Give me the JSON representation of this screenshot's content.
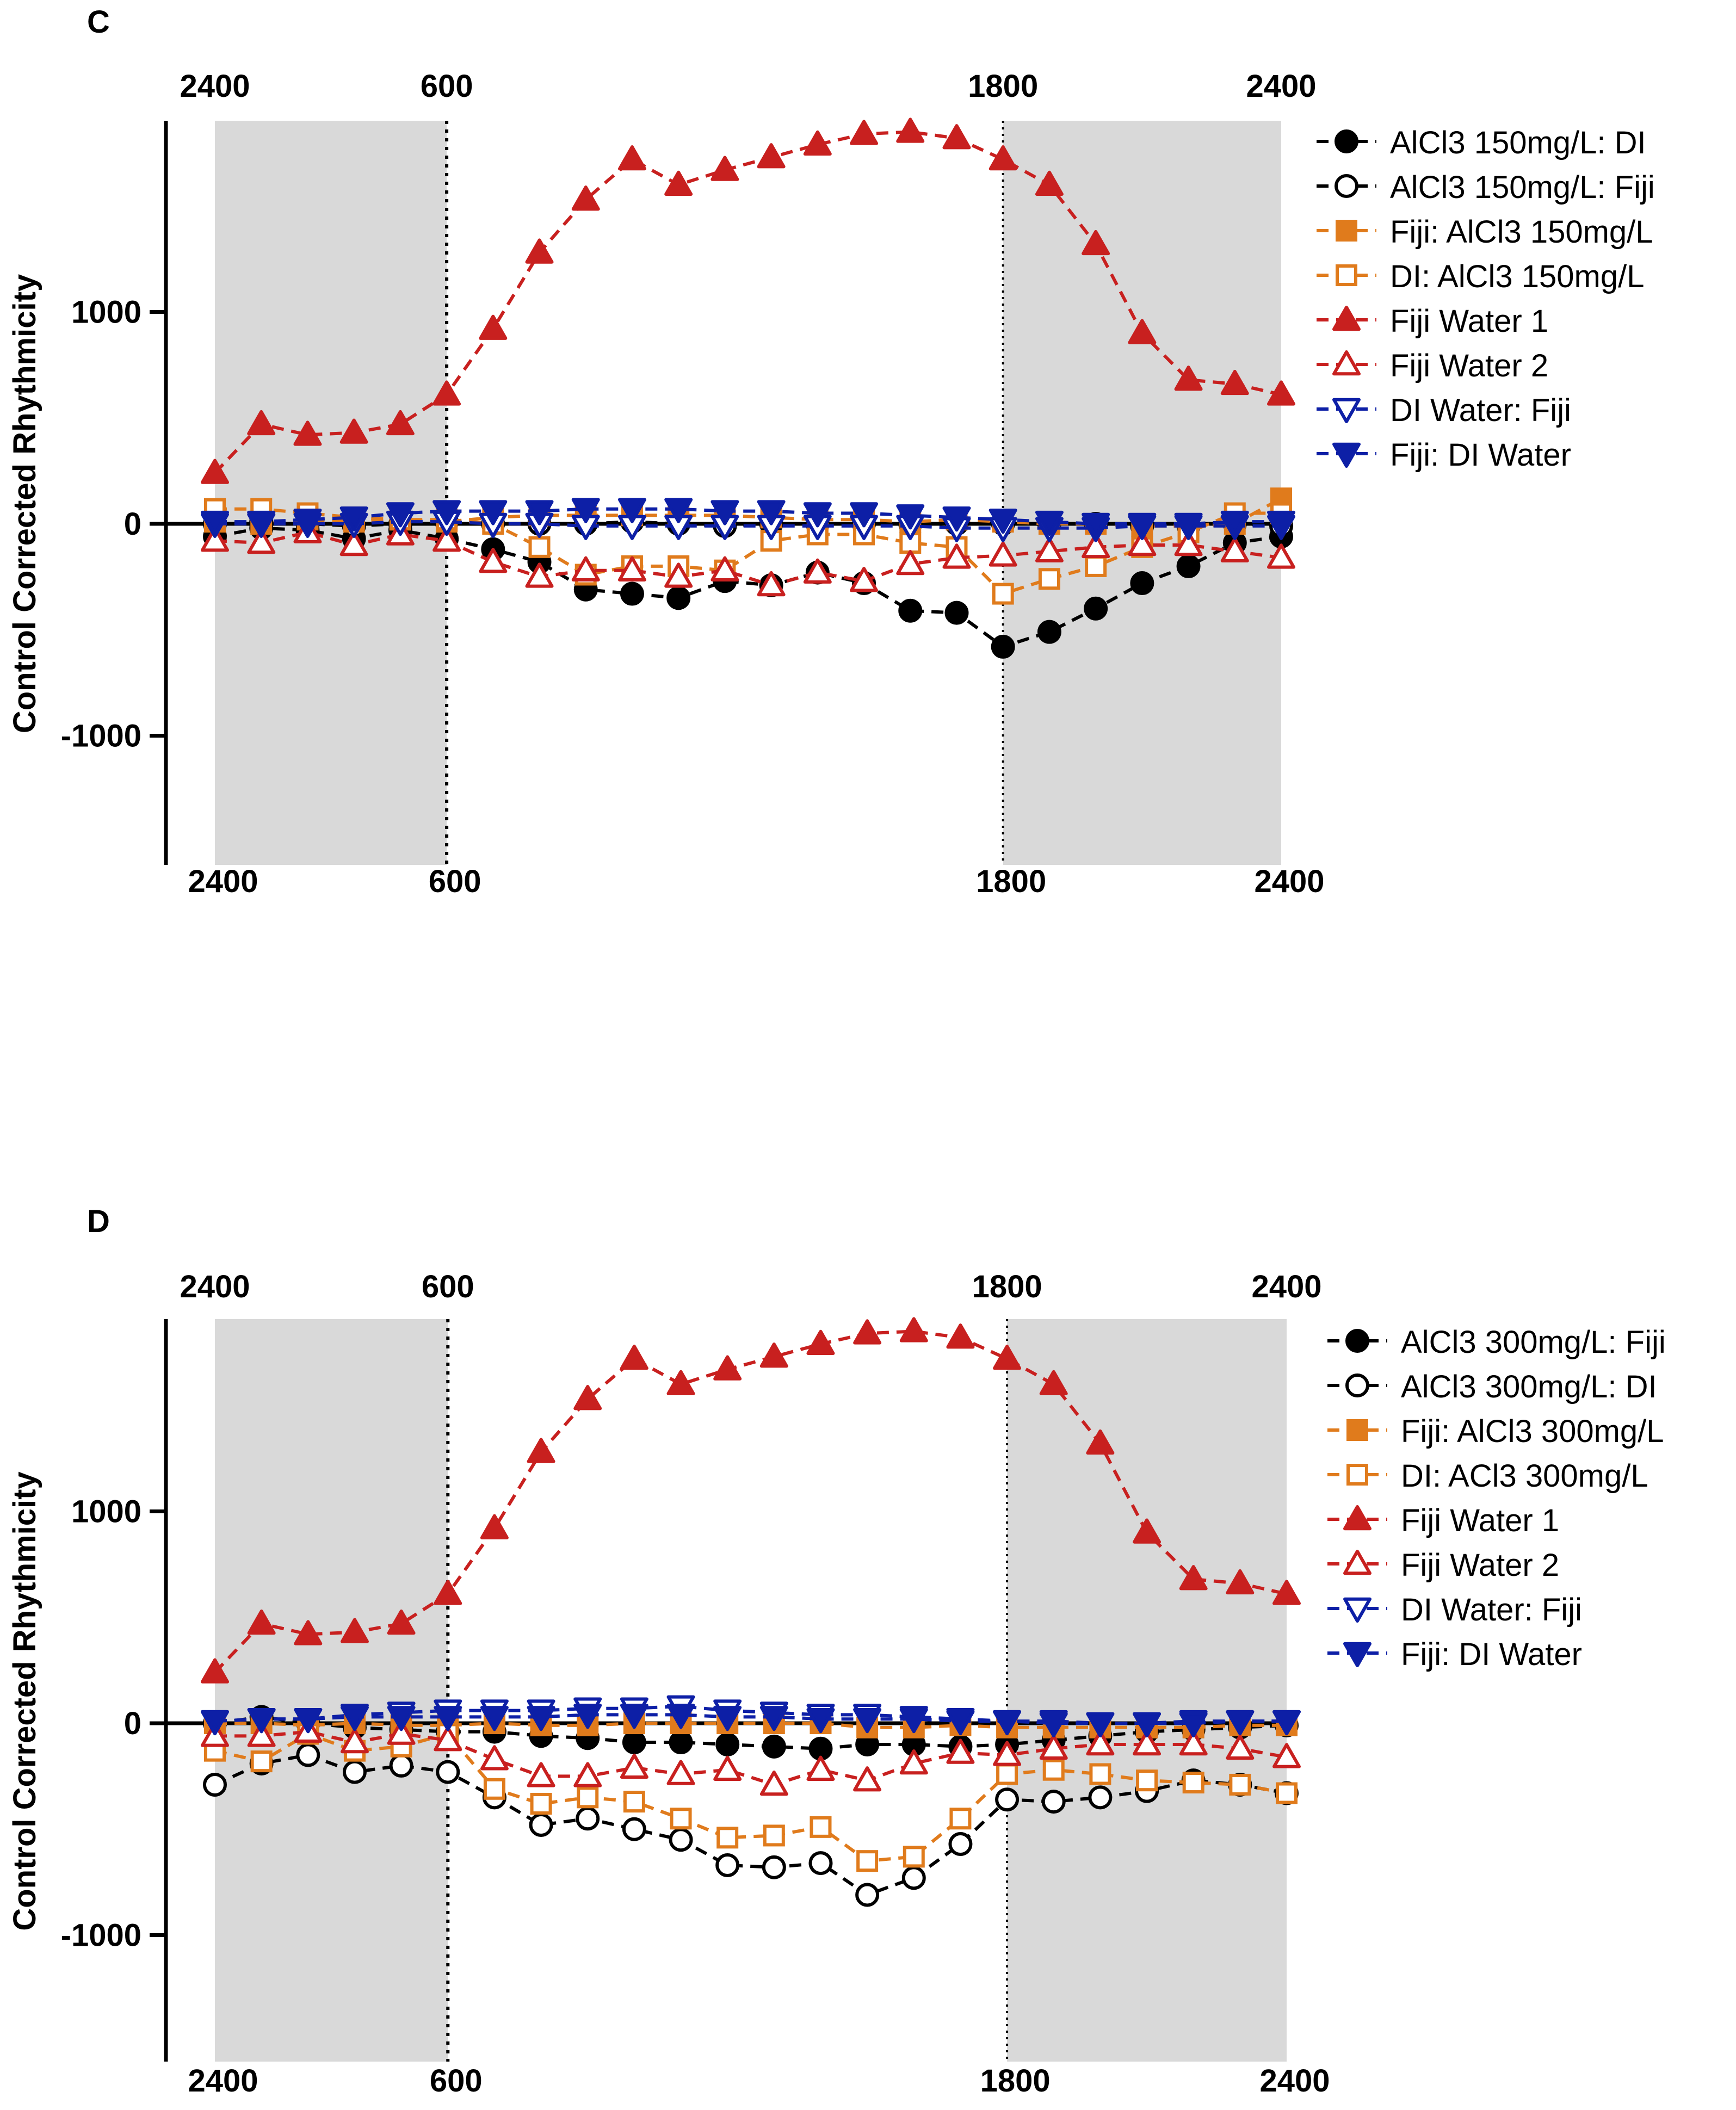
{
  "colors": {
    "black": "#000000",
    "orange": "#e07b1c",
    "red": "#c8201f",
    "blue": "#0d1fa6",
    "shade": "#d9d9d9"
  },
  "chart_data": [
    {
      "panel": "C",
      "type": "line",
      "ylabel": "Control Corrected Rhythmicity",
      "ylim": [
        -1600,
        1900
      ],
      "yticks": [
        1000,
        0,
        -1000
      ],
      "x_ticks_top": [
        "2400",
        "600",
        "1800",
        "2400"
      ],
      "x_ticks_bottom": [
        "2400",
        "600",
        "1800",
        "2400"
      ],
      "x_tick_positions": [
        0,
        5,
        17,
        23
      ],
      "shaded_ranges": [
        [
          0,
          5
        ],
        [
          17,
          23
        ]
      ],
      "light_dark_boundaries": [
        5,
        17
      ],
      "x": [
        0,
        1,
        2,
        3,
        4,
        5,
        6,
        7,
        8,
        9,
        10,
        11,
        12,
        13,
        14,
        15,
        16,
        17,
        18,
        19,
        20,
        21,
        22,
        23
      ],
      "legend_position": "right",
      "series": [
        {
          "name": "AlCl3 150mg/L: DI",
          "color": "black",
          "marker": "circle",
          "filled": true,
          "values": [
            -60,
            -20,
            -30,
            -70,
            -30,
            -70,
            -120,
            -180,
            -310,
            -330,
            -350,
            -270,
            -290,
            -230,
            -280,
            -410,
            -420,
            -580,
            -510,
            -400,
            -280,
            -200,
            -90,
            -60
          ]
        },
        {
          "name": "AlCl3 150mg/L: Fiji",
          "color": "black",
          "marker": "circle",
          "filled": false,
          "values": [
            0,
            10,
            0,
            -10,
            0,
            10,
            0,
            0,
            0,
            10,
            0,
            -10,
            0,
            0,
            0,
            0,
            0,
            0,
            0,
            0,
            -10,
            -10,
            0,
            -10
          ]
        },
        {
          "name": "Fiji: AlCl3 150mg/L",
          "color": "orange",
          "marker": "square",
          "filled": true,
          "values": [
            10,
            0,
            20,
            10,
            20,
            10,
            30,
            40,
            40,
            40,
            40,
            40,
            30,
            20,
            20,
            10,
            20,
            10,
            0,
            0,
            -10,
            -10,
            0,
            120
          ]
        },
        {
          "name": "DI: AlCl3 150mg/L",
          "color": "orange",
          "marker": "square",
          "filled": false,
          "values": [
            70,
            70,
            50,
            30,
            20,
            20,
            0,
            -110,
            -240,
            -200,
            -200,
            -220,
            -80,
            -50,
            -50,
            -90,
            -110,
            -330,
            -260,
            -200,
            -110,
            -40,
            50,
            50
          ]
        },
        {
          "name": "Fiji Water 1",
          "color": "red",
          "marker": "triangle-up",
          "filled": true,
          "values": [
            240,
            470,
            420,
            430,
            470,
            610,
            920,
            1280,
            1530,
            1720,
            1600,
            1670,
            1730,
            1790,
            1840,
            1850,
            1820,
            1720,
            1600,
            1320,
            900,
            680,
            660,
            610
          ]
        },
        {
          "name": "Fiji Water 2",
          "color": "red",
          "marker": "triangle-up",
          "filled": false,
          "values": [
            -80,
            -90,
            -40,
            -100,
            -50,
            -80,
            -180,
            -250,
            -220,
            -220,
            -250,
            -220,
            -290,
            -230,
            -270,
            -190,
            -160,
            -150,
            -130,
            -110,
            -100,
            -100,
            -130,
            -160
          ]
        },
        {
          "name": "DI Water: Fiji",
          "color": "blue",
          "marker": "triangle-down",
          "filled": false,
          "values": [
            0,
            0,
            0,
            0,
            10,
            10,
            0,
            0,
            -10,
            -10,
            -10,
            -10,
            -10,
            -10,
            -10,
            -10,
            -20,
            -20,
            -20,
            -20,
            -10,
            -10,
            -10,
            -10
          ]
        },
        {
          "name": "Fiji: DI Water",
          "color": "blue",
          "marker": "triangle-down",
          "filled": true,
          "values": [
            10,
            10,
            20,
            30,
            50,
            60,
            60,
            60,
            70,
            70,
            70,
            60,
            60,
            50,
            50,
            40,
            30,
            20,
            10,
            0,
            0,
            0,
            10,
            10
          ]
        }
      ]
    },
    {
      "panel": "D",
      "type": "line",
      "ylabel": "Control Corrected Rhythmicity",
      "ylim": [
        -1600,
        1900
      ],
      "yticks": [
        1000,
        0,
        -1000
      ],
      "x_ticks_top": [
        "2400",
        "600",
        "1800",
        "2400"
      ],
      "x_ticks_bottom": [
        "2400",
        "600",
        "1800",
        "2400"
      ],
      "x_tick_positions": [
        0,
        5,
        17,
        23
      ],
      "shaded_ranges": [
        [
          0,
          5
        ],
        [
          17,
          23
        ]
      ],
      "light_dark_boundaries": [
        5,
        17
      ],
      "x": [
        0,
        1,
        2,
        3,
        4,
        5,
        6,
        7,
        8,
        9,
        10,
        11,
        12,
        13,
        14,
        15,
        16,
        17,
        18,
        19,
        20,
        21,
        22,
        23
      ],
      "legend_position": "right",
      "series": [
        {
          "name": "AlCl3 300mg/L: Fiji",
          "color": "black",
          "marker": "circle",
          "filled": true,
          "values": [
            0,
            30,
            0,
            -20,
            -30,
            -40,
            -40,
            -60,
            -70,
            -90,
            -90,
            -100,
            -110,
            -120,
            -100,
            -100,
            -110,
            -100,
            -80,
            -60,
            -40,
            -30,
            -20,
            -10
          ]
        },
        {
          "name": "AlCl3 300mg/L: DI",
          "color": "black",
          "marker": "circle",
          "filled": false,
          "values": [
            -290,
            -190,
            -150,
            -230,
            -200,
            -230,
            -350,
            -480,
            -450,
            -500,
            -550,
            -670,
            -680,
            -660,
            -810,
            -730,
            -570,
            -360,
            -370,
            -350,
            -320,
            -270,
            -290,
            -330
          ]
        },
        {
          "name": "Fiji: AlCl3 300mg/L",
          "color": "orange",
          "marker": "square",
          "filled": true,
          "values": [
            0,
            0,
            -10,
            0,
            -10,
            -10,
            0,
            -10,
            -10,
            0,
            0,
            0,
            0,
            0,
            -20,
            -20,
            -10,
            -20,
            -20,
            -20,
            -20,
            -20,
            -10,
            -10
          ]
        },
        {
          "name": "DI: ACl3 300mg/L",
          "color": "orange",
          "marker": "square",
          "filled": false,
          "values": [
            -130,
            -180,
            -50,
            -130,
            -110,
            -50,
            -310,
            -380,
            -350,
            -370,
            -450,
            -540,
            -530,
            -490,
            -650,
            -630,
            -450,
            -240,
            -220,
            -240,
            -270,
            -280,
            -290,
            -330
          ]
        },
        {
          "name": "Fiji Water 1",
          "color": "red",
          "marker": "triangle-up",
          "filled": true,
          "values": [
            240,
            470,
            420,
            430,
            470,
            610,
            920,
            1280,
            1530,
            1720,
            1600,
            1670,
            1730,
            1790,
            1840,
            1850,
            1820,
            1720,
            1600,
            1320,
            900,
            680,
            660,
            610
          ]
        },
        {
          "name": "Fiji Water 2",
          "color": "red",
          "marker": "triangle-up",
          "filled": false,
          "values": [
            -60,
            -60,
            -40,
            -90,
            -50,
            -80,
            -170,
            -250,
            -250,
            -210,
            -240,
            -220,
            -290,
            -220,
            -270,
            -190,
            -140,
            -150,
            -120,
            -100,
            -100,
            -100,
            -120,
            -160
          ]
        },
        {
          "name": "DI Water: Fiji",
          "color": "blue",
          "marker": "triangle-down",
          "filled": false,
          "values": [
            10,
            20,
            20,
            40,
            50,
            60,
            60,
            60,
            70,
            70,
            80,
            60,
            50,
            40,
            40,
            30,
            20,
            10,
            0,
            0,
            0,
            10,
            10,
            10
          ]
        },
        {
          "name": "Fiji: DI Water",
          "color": "blue",
          "marker": "triangle-down",
          "filled": true,
          "values": [
            10,
            20,
            20,
            30,
            30,
            30,
            30,
            30,
            40,
            40,
            40,
            30,
            30,
            20,
            20,
            20,
            10,
            10,
            10,
            0,
            0,
            0,
            10,
            10
          ]
        }
      ]
    }
  ]
}
